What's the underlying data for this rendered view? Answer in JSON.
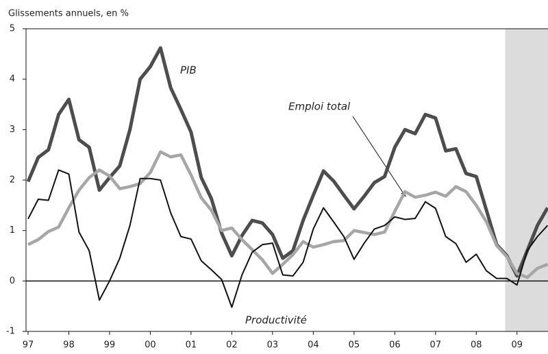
{
  "chart_data": {
    "type": "line",
    "ylabel": "Glissements annuels, en %",
    "x": [
      1997.0,
      1997.25,
      1997.5,
      1997.75,
      1998.0,
      1998.25,
      1998.5,
      1998.75,
      1999.0,
      1999.25,
      1999.5,
      1999.75,
      2000.0,
      2000.25,
      2000.5,
      2000.75,
      2001.0,
      2001.25,
      2001.5,
      2001.75,
      2002.0,
      2002.25,
      2002.5,
      2002.75,
      2003.0,
      2003.25,
      2003.5,
      2003.75,
      2004.0,
      2004.25,
      2004.5,
      2004.75,
      2005.0,
      2005.25,
      2005.5,
      2005.75,
      2006.0,
      2006.25,
      2006.5,
      2006.75,
      2007.0,
      2007.25,
      2007.5,
      2007.75,
      2008.0,
      2008.25,
      2008.5,
      2008.75,
      2009.0,
      2009.25,
      2009.5,
      2009.75
    ],
    "series": [
      {
        "name": "PIB",
        "color": "#4d4d4d",
        "width": 5,
        "values": [
          1.97,
          2.45,
          2.6,
          3.3,
          3.6,
          2.8,
          2.65,
          1.8,
          2.05,
          2.28,
          3.0,
          4.0,
          4.25,
          4.62,
          3.83,
          3.4,
          2.95,
          2.05,
          1.63,
          0.95,
          0.5,
          0.9,
          1.2,
          1.15,
          0.92,
          0.45,
          0.6,
          1.2,
          1.7,
          2.18,
          1.98,
          1.7,
          1.43,
          1.68,
          1.95,
          2.07,
          2.65,
          3.0,
          2.92,
          3.3,
          3.23,
          2.58,
          2.62,
          2.13,
          2.07,
          1.4,
          0.72,
          0.5,
          0.1,
          0.6,
          1.1,
          1.45
        ]
      },
      {
        "name": "Emploi total",
        "color": "#a6a6a6",
        "width": 4.5,
        "values": [
          0.72,
          0.82,
          0.98,
          1.07,
          1.45,
          1.8,
          2.05,
          2.2,
          2.08,
          1.83,
          1.87,
          1.93,
          2.15,
          2.56,
          2.46,
          2.5,
          2.1,
          1.65,
          1.4,
          1.0,
          1.05,
          0.82,
          0.62,
          0.42,
          0.15,
          0.33,
          0.52,
          0.78,
          0.67,
          0.72,
          0.78,
          0.8,
          1.0,
          0.96,
          0.92,
          0.97,
          1.38,
          1.77,
          1.66,
          1.7,
          1.76,
          1.68,
          1.87,
          1.77,
          1.5,
          1.17,
          0.7,
          0.48,
          0.15,
          0.07,
          0.25,
          0.33
        ]
      },
      {
        "name": "Productivité",
        "color": "#111111",
        "width": 2,
        "values": [
          1.23,
          1.62,
          1.6,
          2.2,
          2.12,
          0.97,
          0.6,
          -0.38,
          0.0,
          0.45,
          1.1,
          2.03,
          2.03,
          2.0,
          1.35,
          0.88,
          0.83,
          0.4,
          0.22,
          0.03,
          -0.52,
          0.12,
          0.57,
          0.72,
          0.75,
          0.12,
          0.1,
          0.37,
          1.03,
          1.45,
          1.17,
          0.88,
          0.43,
          0.75,
          1.03,
          1.1,
          1.27,
          1.22,
          1.24,
          1.57,
          1.44,
          0.88,
          0.74,
          0.37,
          0.53,
          0.2,
          0.05,
          0.05,
          -0.08,
          0.6,
          0.88,
          1.1
        ]
      }
    ],
    "xlim": [
      1996.95,
      2009.76
    ],
    "xticks": [
      {
        "value": 1997,
        "label": "97"
      },
      {
        "value": 1998,
        "label": "98"
      },
      {
        "value": 1999,
        "label": "99"
      },
      {
        "value": 2000,
        "label": "00"
      },
      {
        "value": 2001,
        "label": "01"
      },
      {
        "value": 2002,
        "label": "02"
      },
      {
        "value": 2003,
        "label": "03"
      },
      {
        "value": 2004,
        "label": "04"
      },
      {
        "value": 2005,
        "label": "05"
      },
      {
        "value": 2006,
        "label": "06"
      },
      {
        "value": 2007,
        "label": "07"
      },
      {
        "value": 2008,
        "label": "08"
      },
      {
        "value": 2009,
        "label": "09"
      }
    ],
    "ylim": [
      -1,
      5
    ],
    "yticks": [
      -1,
      0,
      1,
      2,
      3,
      4,
      5
    ],
    "shade_xlim": [
      2008.71,
      2009.76
    ]
  }
}
